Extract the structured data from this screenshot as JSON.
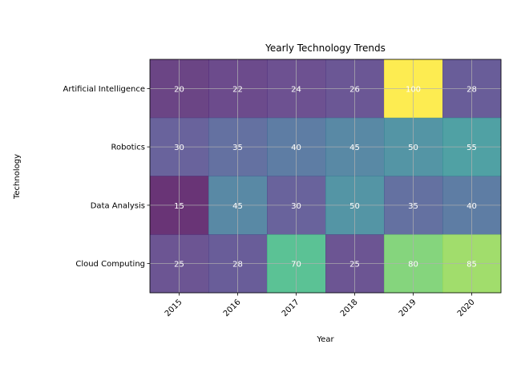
{
  "chart_data": {
    "type": "heatmap",
    "title": "Yearly Technology Trends",
    "xlabel": "Year",
    "ylabel": "Technology",
    "x": [
      "2015",
      "2016",
      "2017",
      "2018",
      "2019",
      "2020"
    ],
    "y": [
      "Artificial Intelligence",
      "Robotics",
      "Data Analysis",
      "Cloud Computing"
    ],
    "values": [
      [
        20,
        22,
        24,
        26,
        100,
        28
      ],
      [
        30,
        35,
        40,
        45,
        50,
        55
      ],
      [
        15,
        45,
        30,
        50,
        35,
        40
      ],
      [
        25,
        28,
        70,
        25,
        80,
        85
      ]
    ],
    "colormap": "viridis",
    "value_range": [
      15,
      100
    ],
    "grid": true,
    "colors": {
      "cell_text": "#ffffff",
      "grid": "#b0b0b0"
    }
  }
}
